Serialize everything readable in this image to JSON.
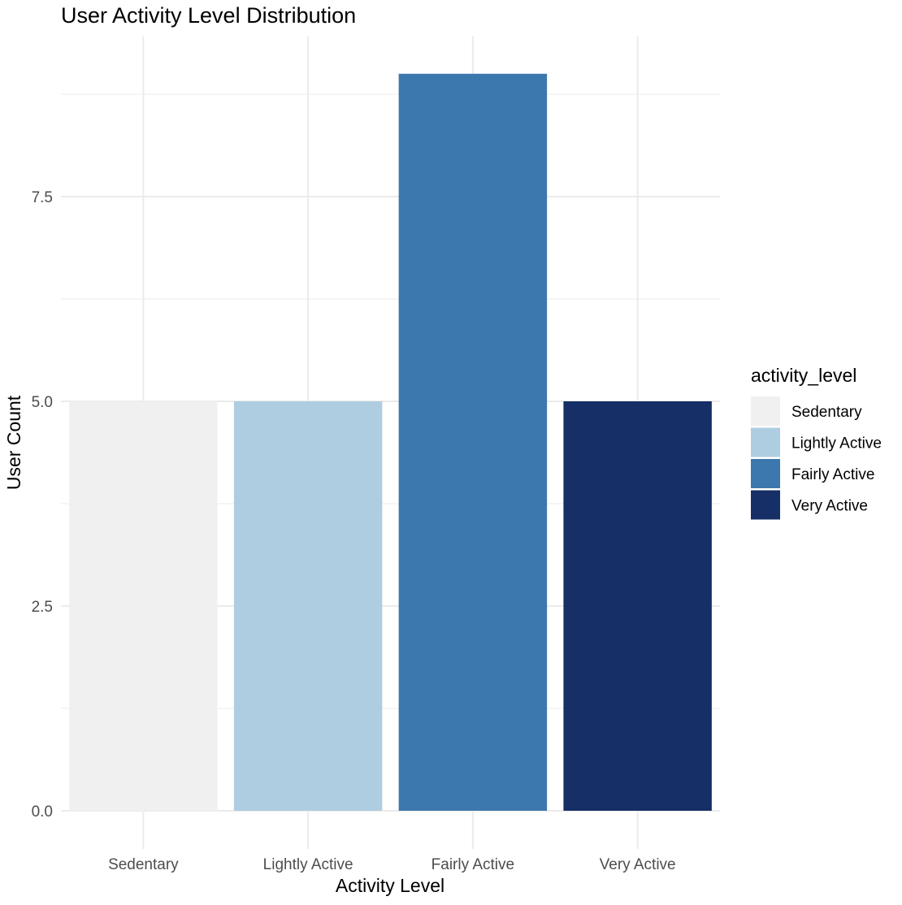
{
  "chart_data": {
    "type": "bar",
    "title": "User Activity Level Distribution",
    "xlabel": "Activity Level",
    "ylabel": "User Count",
    "categories": [
      "Sedentary",
      "Lightly Active",
      "Fairly Active",
      "Very Active"
    ],
    "values": [
      5,
      5,
      9,
      5
    ],
    "colors": [
      "#f0f0f0",
      "#aecde1",
      "#3c77ae",
      "#162f66"
    ],
    "ylim": [
      0,
      9
    ],
    "yticks": [
      0.0,
      2.5,
      5.0,
      7.5
    ],
    "ytick_labels": [
      "0.0",
      "2.5",
      "5.0",
      "7.5"
    ],
    "grid": true,
    "legend": {
      "title": "activity_level",
      "placement": "right",
      "entries": [
        "Sedentary",
        "Lightly Active",
        "Fairly Active",
        "Very Active"
      ]
    }
  }
}
